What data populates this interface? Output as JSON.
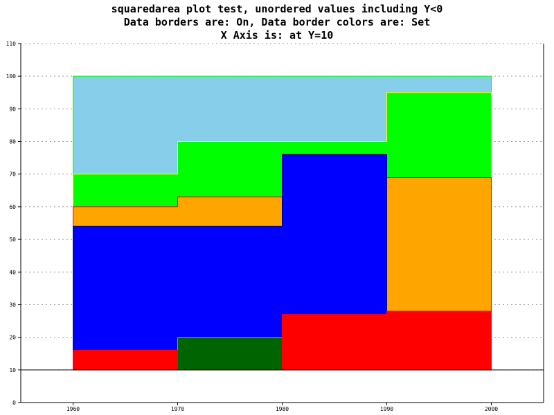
{
  "chart_data": {
    "type": "area",
    "style": "squared-stacked",
    "title_lines": [
      "squaredarea plot test, unordered values including Y<0",
      "Data borders are: On, Data border colors are: Set",
      "X Axis is: at Y=10"
    ],
    "x_ticks": [
      "1960",
      "1970",
      "1980",
      "1990",
      "2000"
    ],
    "y_ticks": [
      "0",
      "10",
      "20",
      "30",
      "40",
      "50",
      "60",
      "70",
      "80",
      "90",
      "100",
      "110"
    ],
    "xlim": [
      1955,
      2005
    ],
    "ylim": [
      0,
      110
    ],
    "x_axis_at": 10,
    "grid": "horizontal-dotted",
    "x": [
      1960,
      1970,
      1980,
      1990
    ],
    "segment_end": 2000,
    "series": [
      {
        "values": [
          16,
          10,
          27,
          28
        ],
        "color": "#ff0000",
        "border": "#ff0000"
      },
      {
        "values": [
          10,
          20,
          25,
          10
        ],
        "color": "#006400",
        "border": "#00ff00"
      },
      {
        "values": [
          54,
          54,
          76,
          27
        ],
        "color": "#0000ff",
        "border": "#000080"
      },
      {
        "values": [
          60,
          63,
          54,
          69
        ],
        "color": "#ffa500",
        "border": "#ff0000"
      },
      {
        "values": [
          70,
          80,
          80,
          95
        ],
        "color": "#00ff00",
        "border": "#ffff00"
      },
      {
        "values": [
          100,
          100,
          100,
          100
        ],
        "color": "#87ceeb",
        "border": "#00ff00"
      }
    ]
  }
}
